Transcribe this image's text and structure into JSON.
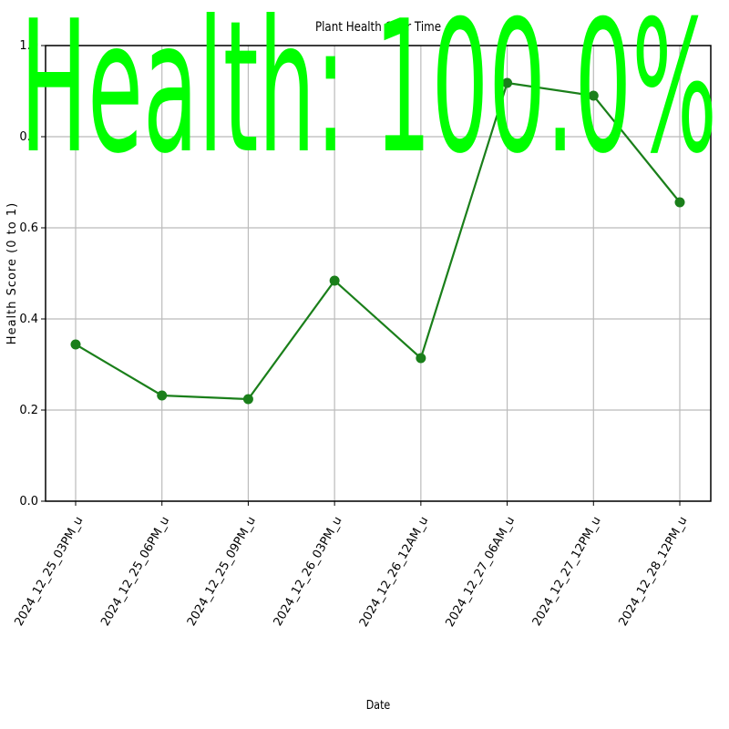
{
  "chart_data": {
    "type": "line",
    "title": "Plant Health Over Time",
    "x_label": "Date",
    "y_label": "Health Score (0 to 1)",
    "overlay_text": "Health: 100.0%",
    "overlay_color": "#00ff00",
    "categories": [
      "2024_12_25_03PM_u",
      "2024_12_25_06PM_u",
      "2024_12_25_09PM_u",
      "2024_12_26_03PM_u",
      "2024_12_26_12AM_u",
      "2024_12_27_06AM_u",
      "2024_12_27_12PM_u",
      "2024_12_28_12PM_u"
    ],
    "values": [
      0.344,
      0.232,
      0.224,
      0.484,
      0.314,
      0.918,
      0.89,
      0.656
    ],
    "color": "#1a7f1a",
    "ylim": [
      0,
      1
    ],
    "yticks": [
      {
        "value": 0,
        "label": "0.0"
      },
      0.2,
      0.4,
      0.6,
      0.8,
      {
        "value": 1,
        "label": "1.0"
      }
    ],
    "grid": true
  }
}
